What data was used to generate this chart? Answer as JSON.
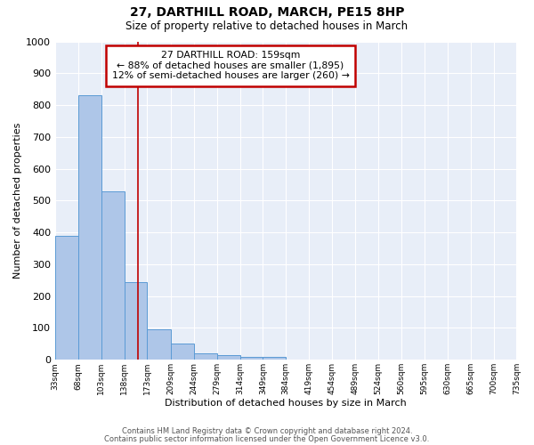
{
  "title": "27, DARTHILL ROAD, MARCH, PE15 8HP",
  "subtitle": "Size of property relative to detached houses in March",
  "xlabel": "Distribution of detached houses by size in March",
  "ylabel": "Number of detached properties",
  "bar_values": [
    390,
    830,
    530,
    243,
    95,
    50,
    20,
    15,
    10,
    10,
    0,
    0,
    0,
    0,
    0,
    0,
    0,
    0,
    0,
    0
  ],
  "bin_edges": [
    33,
    68,
    103,
    138,
    173,
    209,
    244,
    279,
    314,
    349,
    384,
    419,
    454,
    489,
    524,
    560,
    595,
    630,
    665,
    700,
    735
  ],
  "bin_labels": [
    "33sqm",
    "68sqm",
    "103sqm",
    "138sqm",
    "173sqm",
    "209sqm",
    "244sqm",
    "279sqm",
    "314sqm",
    "349sqm",
    "384sqm",
    "419sqm",
    "454sqm",
    "489sqm",
    "524sqm",
    "560sqm",
    "595sqm",
    "630sqm",
    "665sqm",
    "700sqm",
    "735sqm"
  ],
  "bar_color": "#aec6e8",
  "bar_edge_color": "#5b9bd5",
  "property_size": 159,
  "annotation_line1": "27 DARTHILL ROAD: 159sqm",
  "annotation_line2": "← 88% of detached houses are smaller (1,895)",
  "annotation_line3": "12% of semi-detached houses are larger (260) →",
  "vline_color": "#c00000",
  "annotation_box_color": "#c00000",
  "ylim": [
    0,
    1000
  ],
  "background_color": "#e8eef8",
  "footer_line1": "Contains HM Land Registry data © Crown copyright and database right 2024.",
  "footer_line2": "Contains public sector information licensed under the Open Government Licence v3.0."
}
